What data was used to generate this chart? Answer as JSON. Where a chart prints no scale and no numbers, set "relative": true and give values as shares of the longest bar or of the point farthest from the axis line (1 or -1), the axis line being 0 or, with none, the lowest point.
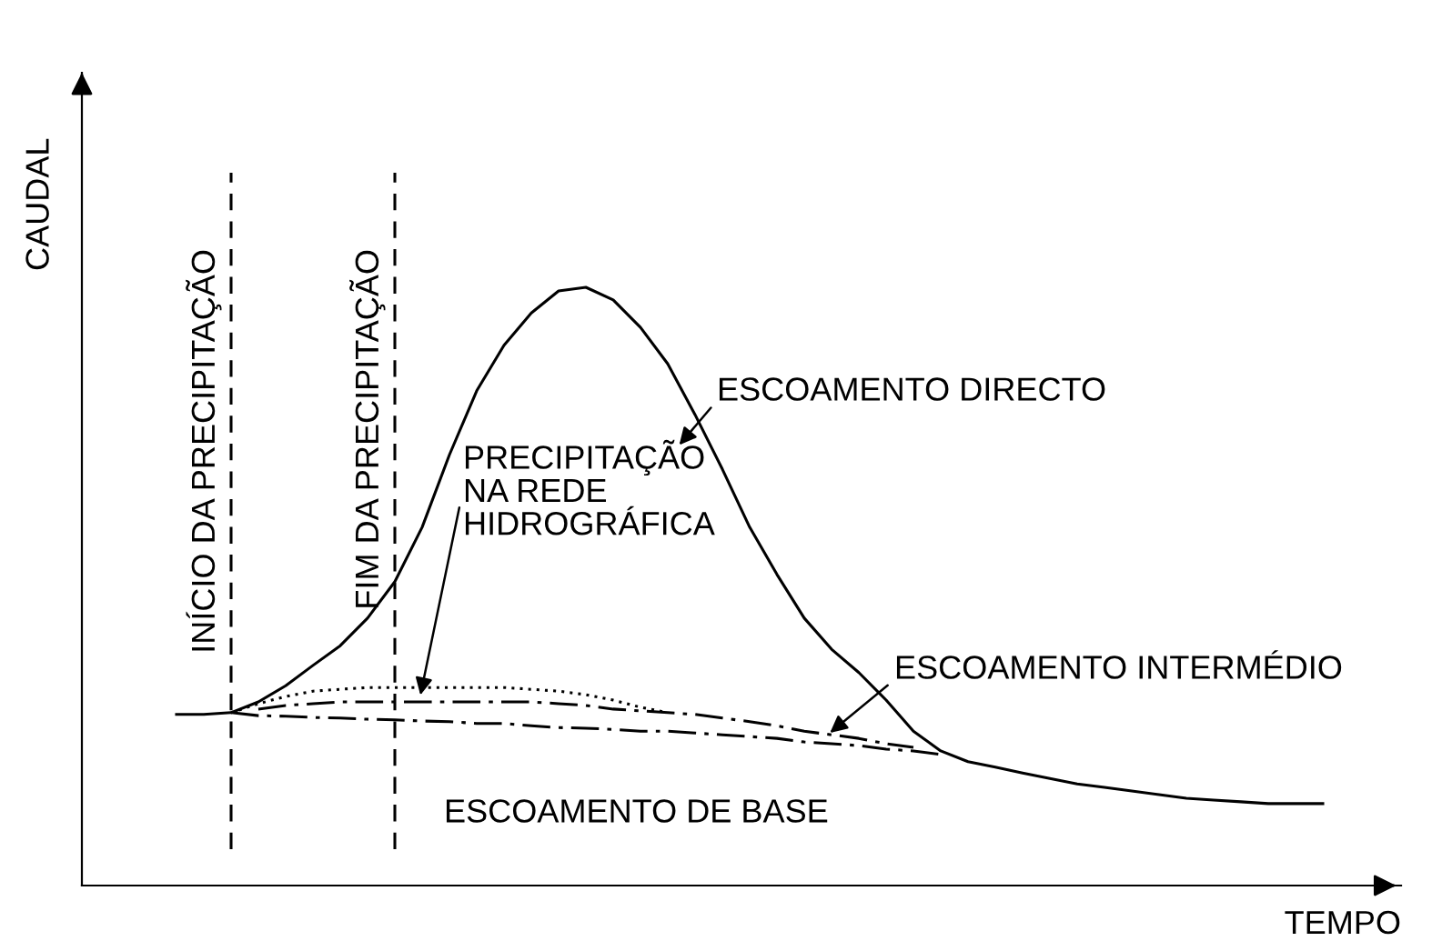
{
  "chart_data": {
    "type": "line",
    "relative": true,
    "xlabel": "TEMPO",
    "ylabel": "CAUDAL",
    "marker": "none",
    "categories": [
      null,
      null,
      null,
      null,
      null,
      null,
      null,
      null,
      null,
      null,
      null,
      null,
      null,
      null,
      null,
      null,
      null,
      null,
      null,
      null,
      null,
      null,
      null,
      null,
      null,
      null,
      null,
      null,
      null,
      null,
      null,
      null,
      null,
      null,
      null,
      null,
      null,
      null,
      null,
      null,
      null,
      null,
      null
    ],
    "series": [
      {
        "color": "#000000",
        "line_style": "solid",
        "values": [
          0.286,
          0.286,
          0.289,
          0.307,
          0.334,
          0.368,
          0.401,
          0.447,
          0.508,
          0.599,
          0.72,
          0.827,
          0.903,
          0.957,
          0.994,
          1.0,
          0.979,
          0.933,
          0.872,
          0.787,
          0.696,
          0.599,
          0.52,
          0.447,
          0.395,
          0.356,
          0.31,
          0.258,
          0.225,
          0.207,
          0.198,
          0.188,
          0.179,
          0.17,
          0.164,
          0.158,
          0.152,
          0.146,
          0.143,
          0.14,
          0.137,
          0.137,
          0.137
        ]
      },
      {
        "color": "#000000",
        "line_style": "dotted",
        "values": [
          null,
          null,
          0.289,
          0.304,
          0.316,
          0.325,
          0.328,
          0.331,
          0.331,
          0.331,
          0.331,
          0.331,
          0.331,
          0.328,
          0.325,
          0.319,
          0.31,
          0.298,
          0.289,
          null,
          null,
          null,
          null,
          null,
          null,
          null,
          null,
          null,
          null,
          null,
          null,
          null,
          null,
          null,
          null,
          null,
          null,
          null,
          null,
          null,
          null,
          null,
          null
        ]
      },
      {
        "color": "#000000",
        "line_style": "dashdot",
        "values": [
          null,
          null,
          null,
          0.295,
          0.301,
          0.304,
          0.307,
          0.307,
          0.307,
          0.307,
          0.307,
          0.307,
          0.307,
          0.307,
          0.304,
          0.301,
          0.295,
          0.292,
          0.289,
          0.286,
          0.28,
          0.274,
          0.267,
          0.258,
          0.252,
          0.246,
          0.237,
          0.231,
          null,
          null,
          null,
          null,
          null,
          null,
          null,
          null,
          null,
          null,
          null,
          null,
          null,
          null,
          null
        ]
      },
      {
        "color": "#000000",
        "line_style": "dashdot",
        "values": [
          null,
          null,
          0.289,
          0.284,
          0.283,
          0.281,
          0.28,
          0.278,
          0.277,
          0.275,
          0.274,
          0.271,
          0.271,
          0.267,
          0.264,
          0.263,
          0.261,
          0.258,
          0.258,
          0.255,
          0.252,
          0.249,
          0.246,
          0.24,
          0.237,
          0.234,
          0.228,
          0.225,
          0.219,
          null,
          null,
          null,
          null,
          null,
          null,
          null,
          null,
          null,
          null,
          null,
          null,
          null,
          null
        ]
      }
    ],
    "annotations": [
      "INÍCIO DA PRECIPITAÇÃO",
      "FIM DA PRECIPITAÇÃO",
      "ESCOAMENTO DIRECTO",
      "PRECIPITAÇÃO\nNA REDE\nHIDROGRÁFICA",
      "ESCOAMENTO INTERMÉDIO",
      "ESCOAMENTO DE BASE"
    ]
  }
}
